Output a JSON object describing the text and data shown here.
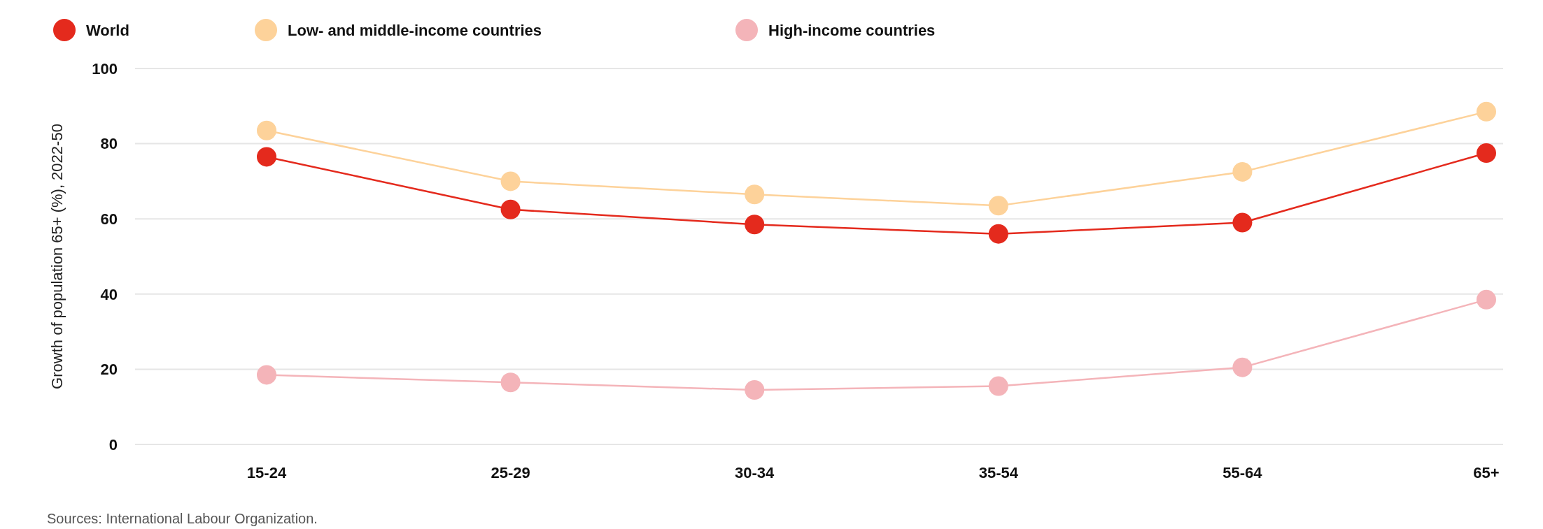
{
  "chart_data": {
    "type": "line",
    "categories": [
      "15-24",
      "25-29",
      "30-34",
      "35-54",
      "55-64",
      "65+"
    ],
    "ylabel": "Growth of population 65+ (%), 2022-50",
    "ylim": [
      0,
      100
    ],
    "yticks": [
      0,
      20,
      40,
      60,
      80,
      100
    ],
    "grid": "y",
    "marker": "circle",
    "legend": "top left",
    "series": [
      {
        "name": "World",
        "color": "#e42a1d",
        "values": [
          76.5,
          62.5,
          58.5,
          56,
          59,
          77.5
        ]
      },
      {
        "name": "Low- and middle-income countries",
        "color": "#fdd29a",
        "values": [
          83.5,
          70,
          66.5,
          63.5,
          72.5,
          88.5
        ]
      },
      {
        "name": "High-income countries",
        "color": "#f4b4b9",
        "values": [
          18.5,
          16.5,
          14.5,
          15.5,
          20.5,
          38.5
        ]
      }
    ],
    "annotations": [
      "Sources: International Labour Organization."
    ]
  }
}
